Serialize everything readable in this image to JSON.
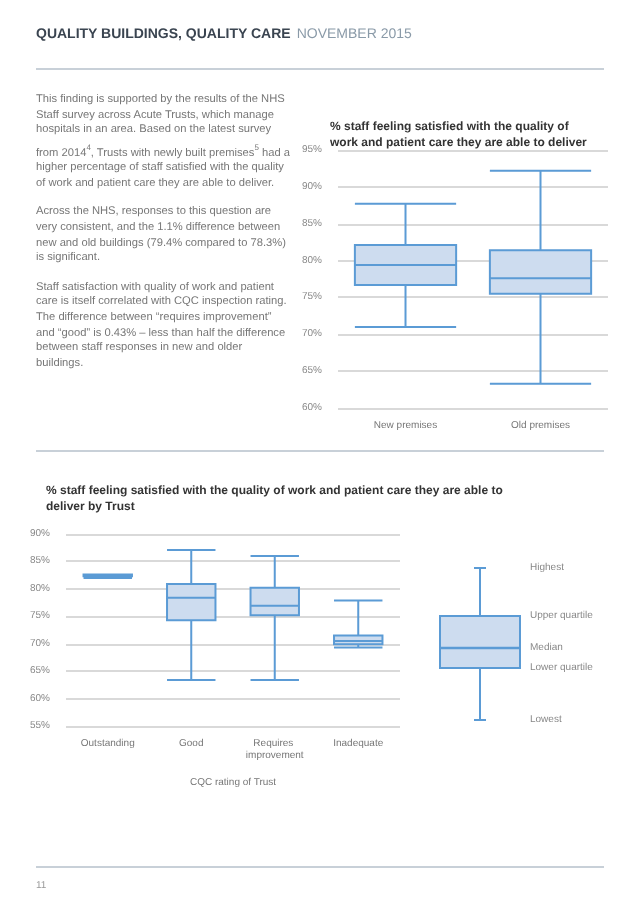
{
  "chart_data": [
    {
      "type": "other",
      "title": "QUALITY BUILDINGS, QUALITY CARE",
      "subtitle": "NOVEMBER 2015",
      "annotations": [
        "This finding is supported by the results of the NHS Staff survey across Acute Trusts, which manage hospitals in an area. Based on the latest survey from 2014$^{4}$, Trusts with newly built premises$^{5}$ had a higher percentage of staff satisfied with the quality of work and patient care they are able to deliver.",
        "Across the NHS, responses to this question are very consistent, and the 1.1% difference between new and old buildings (79.4% compared to 78.3%) is significant.",
        "Staff satisfaction with quality of work and patient care is itself correlated with CQC inspection rating. The difference between “requires improvement” and “good” is 0.43% – less than half the difference between staff responses in new and older buildings.",
        "11"
      ]
    },
    {
      "type": "box",
      "title": "% staff feeling satisfied with the quality of work and patient care they are able to deliver",
      "categories": [
        "New premises",
        "Old premises"
      ],
      "color": "#5b9bd5",
      "boxes": [
        {
          "low": 71,
          "q1": 76.7,
          "median": 79.4,
          "q3": 82.1,
          "high": 87.7
        },
        {
          "low": 63.3,
          "q1": 75.5,
          "median": 77.6,
          "q3": 81.4,
          "high": 92.2
        }
      ],
      "ylim": [
        60,
        95
      ],
      "yticks": [
        {
          "value": 60,
          "label": "60%"
        },
        {
          "value": 65,
          "label": "65%"
        },
        {
          "value": 70,
          "label": "70%"
        },
        {
          "value": 75,
          "label": "75%"
        },
        {
          "value": 80,
          "label": "80%"
        },
        {
          "value": 85,
          "label": "85%"
        },
        {
          "value": 90,
          "label": "90%"
        },
        {
          "value": 95,
          "label": "95%"
        }
      ],
      "grid": "y"
    },
    {
      "type": "box",
      "title": "% staff feeling satisfied with the quality of work and patient care they are able to deliver by Trust",
      "xlabel": "CQC rating of Trust",
      "categories": [
        "Outstanding",
        "Good",
        "Requires improvement",
        "Inadequate"
      ],
      "color": "#5b9bd5",
      "boxes": [
        {
          "low": 82,
          "q1": 82.3,
          "median": 82.5,
          "q3": 82.6,
          "high": 82.6
        },
        {
          "low": 63.4,
          "q1": 74.3,
          "median": 78.4,
          "q3": 80.9,
          "high": 87.1
        },
        {
          "low": 63.4,
          "q1": 75.2,
          "median": 76.9,
          "q3": 80.2,
          "high": 86
        },
        {
          "low": 69.3,
          "q1": 69.9,
          "median": 70.5,
          "q3": 71.5,
          "high": 77.9
        }
      ],
      "ylim": [
        55,
        90
      ],
      "yticks": [
        {
          "value": 55,
          "label": "55%"
        },
        {
          "value": 60,
          "label": "60%"
        },
        {
          "value": 65,
          "label": "65%"
        },
        {
          "value": 70,
          "label": "70%"
        },
        {
          "value": 75,
          "label": "75%"
        },
        {
          "value": 80,
          "label": "80%"
        },
        {
          "value": 85,
          "label": "85%"
        },
        {
          "value": 90,
          "label": "90%"
        }
      ],
      "grid": "y",
      "annotations": [
        "Highest",
        "Upper quartile",
        "Median",
        "Lower quartile",
        "Lowest"
      ]
    }
  ]
}
